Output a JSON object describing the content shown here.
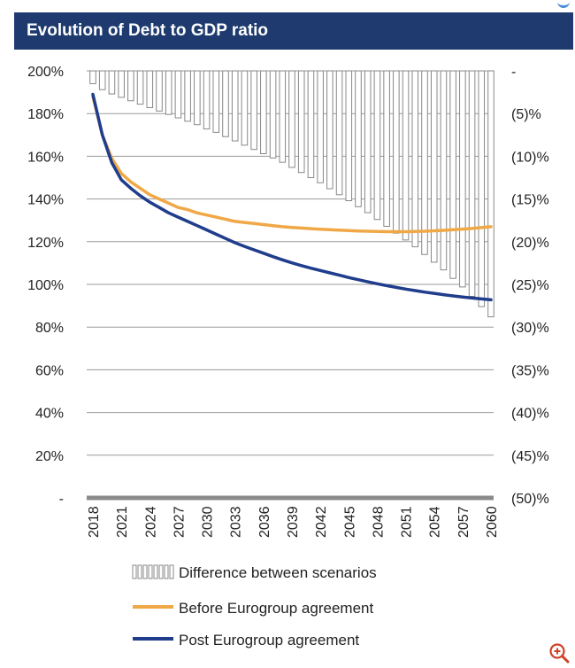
{
  "chart_data": {
    "type": "bar+line",
    "title": "Evolution of Debt to GDP ratio",
    "x": [
      2018,
      2019,
      2020,
      2021,
      2022,
      2023,
      2024,
      2025,
      2026,
      2027,
      2028,
      2029,
      2030,
      2031,
      2032,
      2033,
      2034,
      2035,
      2036,
      2037,
      2038,
      2039,
      2040,
      2041,
      2042,
      2043,
      2044,
      2045,
      2046,
      2047,
      2048,
      2049,
      2050,
      2051,
      2052,
      2053,
      2054,
      2055,
      2056,
      2057,
      2058,
      2059,
      2060
    ],
    "x_tick_labels": [
      "2018",
      "2021",
      "2024",
      "2027",
      "2030",
      "2033",
      "2036",
      "2039",
      "2042",
      "2045",
      "2048",
      "2051",
      "2054",
      "2057",
      "2060"
    ],
    "left_axis": {
      "ylim": [
        0,
        200
      ],
      "tick_labels": [
        "-",
        "20%",
        "40%",
        "60%",
        "80%",
        "100%",
        "120%",
        "140%",
        "160%",
        "180%",
        "200%"
      ]
    },
    "right_axis": {
      "ylim": [
        -50,
        0
      ],
      "tick_labels": [
        "(50)%",
        "(45)%",
        "(40)%",
        "(35)%",
        "(30)%",
        "(25)%",
        "(20)%",
        "(15)%",
        "(10)%",
        "(5)%",
        "-"
      ]
    },
    "series": [
      {
        "name": "Difference between scenarios",
        "kind": "bar",
        "axis": "right",
        "color": "#ffffff",
        "edge_color": "#888888",
        "values": [
          -1.5,
          -2.2,
          -2.7,
          -3.1,
          -3.5,
          -3.9,
          -4.3,
          -4.7,
          -5.1,
          -5.5,
          -5.9,
          -6.3,
          -6.8,
          -7.2,
          -7.7,
          -8.2,
          -8.7,
          -9.2,
          -9.7,
          -10.2,
          -10.7,
          -11.3,
          -11.9,
          -12.5,
          -13.1,
          -13.8,
          -14.5,
          -15.2,
          -15.9,
          -16.6,
          -17.4,
          -18.2,
          -19.0,
          -19.8,
          -20.6,
          -21.5,
          -22.4,
          -23.3,
          -24.3,
          -25.3,
          -26.4,
          -27.6,
          -28.8
        ]
      },
      {
        "name": "Before Eurogroup agreement",
        "kind": "line",
        "axis": "left",
        "color": "#f0a847",
        "values": [
          188,
          170,
          159,
          152,
          148,
          145,
          142,
          140,
          138,
          136,
          135,
          133.5,
          132.5,
          131.5,
          130.5,
          129.5,
          129,
          128.5,
          128,
          127.5,
          127,
          126.7,
          126.4,
          126.1,
          125.8,
          125.6,
          125.4,
          125.2,
          125,
          124.9,
          124.8,
          124.7,
          124.7,
          124.7,
          124.8,
          124.9,
          125.1,
          125.3,
          125.6,
          125.9,
          126.2,
          126.6,
          127
        ]
      },
      {
        "name": "Post Eurogroup agreement",
        "kind": "line",
        "axis": "left",
        "color": "#1f3d8c",
        "values": [
          189,
          170,
          157,
          149,
          145,
          141.5,
          138.5,
          136,
          133.5,
          131.5,
          129.5,
          127.5,
          125.5,
          123.5,
          121.5,
          119.5,
          117.8,
          116.2,
          114.6,
          113,
          111.5,
          110.1,
          108.8,
          107.6,
          106.5,
          105.4,
          104.3,
          103.2,
          102.2,
          101.2,
          100.3,
          99.4,
          98.6,
          97.8,
          97.1,
          96.4,
          95.8,
          95.2,
          94.6,
          94.1,
          93.6,
          93.2,
          92.8
        ]
      }
    ],
    "legend_position": "bottom",
    "grid": true
  },
  "legend": [
    {
      "label": "Difference between scenarios"
    },
    {
      "label": "Before Eurogroup agreement"
    },
    {
      "label": "Post Eurogroup agreement"
    }
  ],
  "icons": {
    "zoom": "zoom-in-icon"
  }
}
